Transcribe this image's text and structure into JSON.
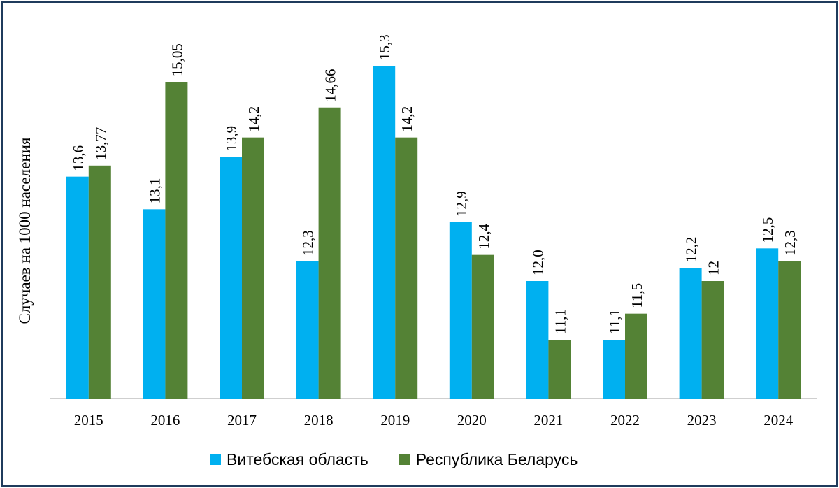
{
  "chart_data": {
    "type": "bar",
    "title": "",
    "xlabel": "",
    "ylabel": "Случаев на 1000 населения",
    "categories": [
      "2015",
      "2016",
      "2017",
      "2018",
      "2019",
      "2020",
      "2021",
      "2022",
      "2023",
      "2024"
    ],
    "series": [
      {
        "name": "Витебская область",
        "color": "#00b0f0",
        "values": [
          13.6,
          13.1,
          13.9,
          12.3,
          15.3,
          12.9,
          12.0,
          11.1,
          12.2,
          12.5
        ],
        "labels": [
          "13,6",
          "13,1",
          "13,9",
          "12,3",
          "15,3",
          "12,9",
          "12,0",
          "11,1",
          "12,2",
          "12,5"
        ]
      },
      {
        "name": "Республика Беларусь",
        "color": "#548235",
        "values": [
          13.77,
          15.05,
          14.2,
          14.66,
          14.2,
          12.4,
          11.1,
          11.5,
          12.0,
          12.3
        ],
        "labels": [
          "13,77",
          "15,05",
          "14,2",
          "14,66",
          "14,2",
          "12,4",
          "11,1",
          "11,5",
          "12",
          "12,3"
        ]
      }
    ],
    "ylim": [
      10.2,
      15.7
    ],
    "grid": false,
    "legend": "bottom"
  }
}
